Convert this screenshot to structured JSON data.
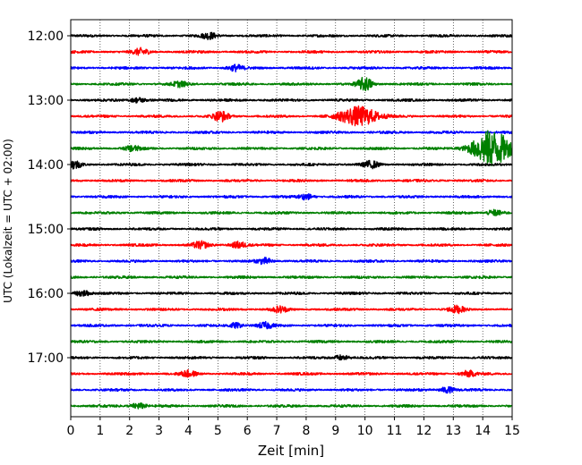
{
  "chart_data": {
    "type": "line",
    "chart_kind": "helicorder seismogram",
    "xlabel": "Zeit  [min]",
    "ylabel": "UTC (Lokalzeit = UTC + 02:00)",
    "xlim": [
      0,
      15
    ],
    "x_ticks": [
      0,
      1,
      2,
      3,
      4,
      5,
      6,
      7,
      8,
      9,
      10,
      11,
      12,
      13,
      14,
      15
    ],
    "y_tick_labels": [
      "12:00",
      "13:00",
      "14:00",
      "15:00",
      "16:00",
      "17:00"
    ],
    "traces_per_hour": 4,
    "trace_minutes": 15,
    "grid": "vertical dotted at each minute",
    "color_cycle": [
      "#000000",
      "#ff0000",
      "#0000ff",
      "#008000"
    ],
    "trace_start_times": [
      "12:00",
      "12:15",
      "12:30",
      "12:45",
      "13:00",
      "13:15",
      "13:30",
      "13:45",
      "14:00",
      "14:15",
      "14:30",
      "14:45",
      "15:00",
      "15:15",
      "15:30",
      "15:45",
      "16:00",
      "16:15",
      "16:30",
      "16:45",
      "17:00",
      "17:15",
      "17:30",
      "17:45"
    ],
    "events": [
      {
        "trace": "12:00",
        "minute": 4.7,
        "amplitude": 0.35
      },
      {
        "trace": "12:15",
        "minute": 2.4,
        "amplitude": 0.4
      },
      {
        "trace": "12:30",
        "minute": 5.6,
        "amplitude": 0.35
      },
      {
        "trace": "12:45",
        "minute": 3.7,
        "amplitude": 0.3
      },
      {
        "trace": "12:45",
        "minute": 10.0,
        "amplitude": 0.8
      },
      {
        "trace": "13:00",
        "minute": 2.3,
        "amplitude": 0.3
      },
      {
        "trace": "13:15",
        "minute": 5.1,
        "amplitude": 0.6
      },
      {
        "trace": "13:15",
        "minute": 9.8,
        "amplitude": 1.2
      },
      {
        "trace": "13:45",
        "minute": 2.1,
        "amplitude": 0.3
      },
      {
        "trace": "13:45",
        "minute": 14.3,
        "amplitude": 2.2
      },
      {
        "trace": "14:00",
        "minute": 0.1,
        "amplitude": 0.5
      },
      {
        "trace": "14:00",
        "minute": 10.2,
        "amplitude": 0.4
      },
      {
        "trace": "14:30",
        "minute": 8.0,
        "amplitude": 0.3
      },
      {
        "trace": "14:45",
        "minute": 14.4,
        "amplitude": 0.35
      },
      {
        "trace": "15:15",
        "minute": 4.4,
        "amplitude": 0.4
      },
      {
        "trace": "15:15",
        "minute": 5.7,
        "amplitude": 0.4
      },
      {
        "trace": "15:30",
        "minute": 6.6,
        "amplitude": 0.35
      },
      {
        "trace": "16:00",
        "minute": 0.4,
        "amplitude": 0.35
      },
      {
        "trace": "16:15",
        "minute": 7.1,
        "amplitude": 0.35
      },
      {
        "trace": "16:15",
        "minute": 13.1,
        "amplitude": 0.4
      },
      {
        "trace": "16:30",
        "minute": 5.6,
        "amplitude": 0.3
      },
      {
        "trace": "16:30",
        "minute": 6.6,
        "amplitude": 0.35
      },
      {
        "trace": "17:00",
        "minute": 9.2,
        "amplitude": 0.3
      },
      {
        "trace": "17:15",
        "minute": 4.0,
        "amplitude": 0.35
      },
      {
        "trace": "17:15",
        "minute": 13.5,
        "amplitude": 0.35
      },
      {
        "trace": "17:30",
        "minute": 12.8,
        "amplitude": 0.35
      },
      {
        "trace": "17:45",
        "minute": 2.3,
        "amplitude": 0.35
      }
    ]
  }
}
